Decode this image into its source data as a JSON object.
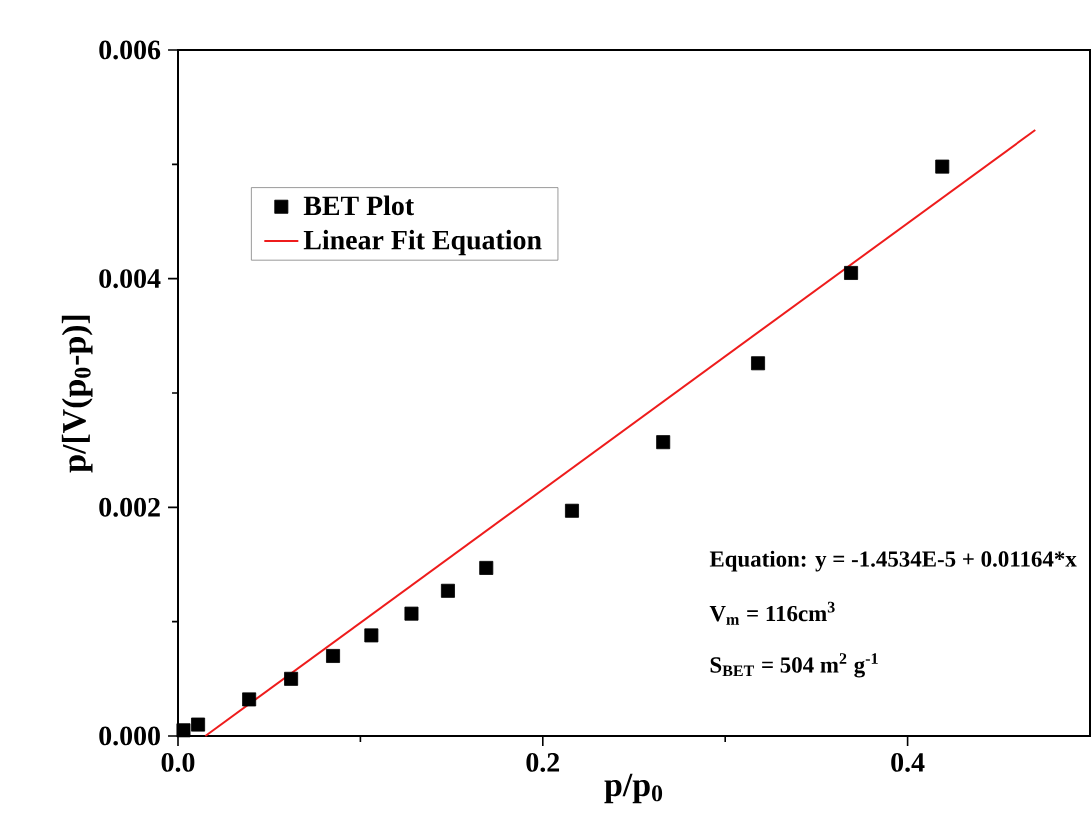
{
  "chart_data": {
    "type": "scatter",
    "xlabel": "p/p$_{0}$",
    "ylabel": "p/[V(p$_{0}$-p)]",
    "xlim": [
      0,
      0.5
    ],
    "ylim": [
      0,
      0.006
    ],
    "xticks": [
      {
        "value": 0,
        "label": "0.0"
      },
      {
        "value": 0.1,
        "label": null
      },
      {
        "value": 0.2,
        "label": "0.2"
      },
      {
        "value": 0.3,
        "label": null
      },
      {
        "value": 0.4,
        "label": "0.4"
      }
    ],
    "yticks": [
      {
        "value": 0,
        "label": "0.000"
      },
      {
        "value": 0.001,
        "label": null
      },
      {
        "value": 0.002,
        "label": "0.002"
      },
      {
        "value": 0.003,
        "label": null
      },
      {
        "value": 0.004,
        "label": "0.004"
      },
      {
        "value": 0.005,
        "label": null
      },
      {
        "value": 0.006,
        "label": "0.006"
      }
    ],
    "legend": "top left",
    "grid": false,
    "series": [
      {
        "name": "BET Plot",
        "type": "scatter",
        "color": "#000000",
        "marker": "square",
        "x": [
          0.003,
          0.011,
          0.039,
          0.062,
          0.085,
          0.106,
          0.128,
          0.148,
          0.169,
          0.216,
          0.266,
          0.318,
          0.369,
          0.419
        ],
        "values": [
          5e-05,
          0.0001,
          0.00032,
          0.0005,
          0.0007,
          0.00088,
          0.00107,
          0.00127,
          0.00147,
          0.00197,
          0.00257,
          0.00326,
          0.00405,
          0.00498
        ]
      },
      {
        "name": "Linear Fit Equation",
        "type": "line",
        "color": "#ee1c1c",
        "marker": "none",
        "line_style": "solid",
        "x": [
          0.015,
          0.47
        ],
        "values": [
          0,
          0.0053
        ]
      }
    ],
    "annotations": [
      "Equation: y = -1.4534E-5 + 0.01164*x",
      "V$_{m}$ = 116cm$^{3}$",
      "S$_{BET}$ = 504 m$^{2}$ g$^{-1}$"
    ]
  }
}
